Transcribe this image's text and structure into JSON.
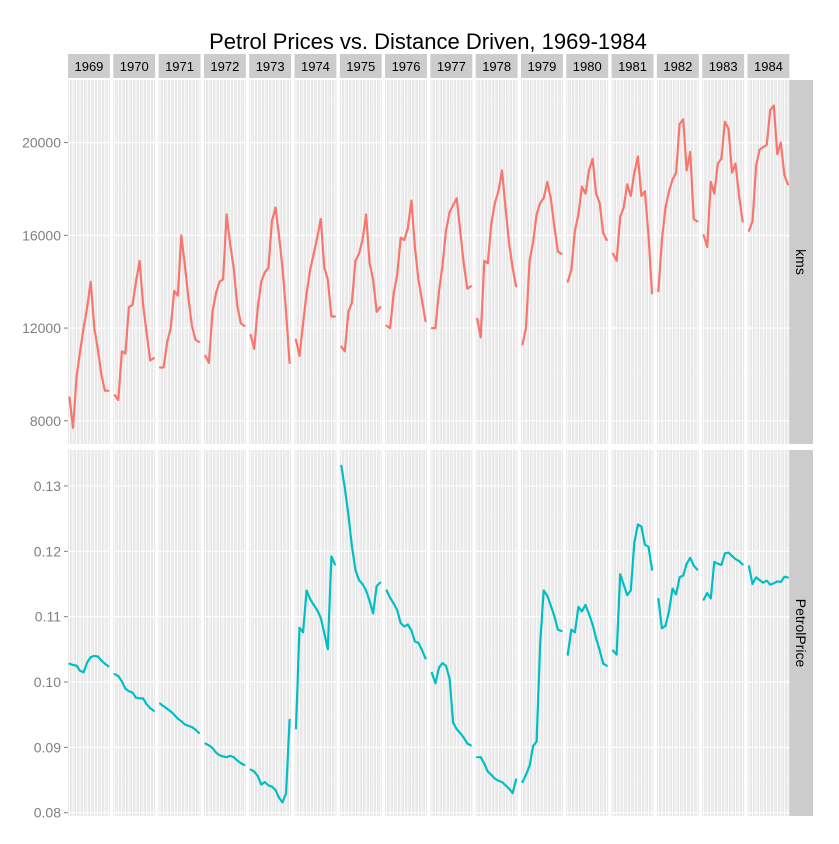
{
  "chart_data": {
    "type": "line",
    "title": "Petrol Prices vs. Distance Driven, 1969-1984",
    "xlabel": "",
    "ylabel": "",
    "grid": true,
    "legend": "none",
    "facet_columns": [
      "1969",
      "1970",
      "1971",
      "1972",
      "1973",
      "1974",
      "1975",
      "1976",
      "1977",
      "1978",
      "1979",
      "1980",
      "1981",
      "1982",
      "1983",
      "1984"
    ],
    "x_months": [
      1,
      2,
      3,
      4,
      5,
      6,
      7,
      8,
      9,
      10,
      11,
      12
    ],
    "panels": [
      {
        "label": "kms",
        "color": "#F8766D",
        "ylim": [
          7000,
          22700
        ],
        "yticks": [
          8000,
          12000,
          16000,
          20000
        ],
        "ytick_labels": [
          "8000",
          "12000",
          "16000",
          "20000"
        ],
        "series": [
          {
            "year": "1969",
            "values": [
              9000,
              7700,
              9900,
              11000,
              12000,
              12900,
              14000,
              12000,
              11100,
              10000,
              9300,
              9300
            ]
          },
          {
            "year": "1970",
            "values": [
              9100,
              8900,
              11000,
              10900,
              12900,
              13000,
              14000,
              14900,
              13000,
              11800,
              10600,
              10700
            ]
          },
          {
            "year": "1971",
            "values": [
              10300,
              10300,
              11400,
              12000,
              13600,
              13400,
              16000,
              14700,
              13300,
              12100,
              11500,
              11400
            ]
          },
          {
            "year": "1972",
            "values": [
              10800,
              10500,
              12700,
              13500,
              14000,
              14100,
              16900,
              15600,
              14600,
              13000,
              12200,
              12100
            ]
          },
          {
            "year": "1973",
            "values": [
              11700,
              11100,
              12900,
              14000,
              14400,
              14600,
              16600,
              17200,
              16000,
              14600,
              12700,
              10500
            ]
          },
          {
            "year": "1974",
            "values": [
              11500,
              10800,
              12200,
              13500,
              14500,
              15200,
              15900,
              16700,
              14600,
              14100,
              12500,
              12500
            ]
          },
          {
            "year": "1975",
            "values": [
              11200,
              11000,
              12700,
              13100,
              14900,
              15200,
              15800,
              16900,
              14800,
              14100,
              12700,
              12900
            ]
          },
          {
            "year": "1976",
            "values": [
              12100,
              12000,
              13500,
              14300,
              15900,
              15800,
              16300,
              17500,
              15500,
              14100,
              13200,
              12300
            ]
          },
          {
            "year": "1977",
            "values": [
              12000,
              12000,
              13600,
              14700,
              16200,
              17000,
              17300,
              17600,
              16200,
              14800,
              13700,
              13800
            ]
          },
          {
            "year": "1978",
            "values": [
              12400,
              11600,
              14900,
              14800,
              16500,
              17400,
              17900,
              18800,
              17200,
              15700,
              14600,
              13800
            ]
          },
          {
            "year": "1979",
            "values": [
              11300,
              12000,
              14900,
              15700,
              16900,
              17400,
              17600,
              18300,
              17600,
              16400,
              15300,
              15200
            ]
          },
          {
            "year": "1980",
            "values": [
              14000,
              14500,
              16200,
              16900,
              18100,
              17800,
              18800,
              19300,
              17800,
              17400,
              16100,
              15800
            ]
          },
          {
            "year": "1981",
            "values": [
              15200,
              14900,
              16800,
              17200,
              18200,
              17700,
              18700,
              19400,
              17700,
              17900,
              16000,
              13500
            ]
          },
          {
            "year": "1982",
            "values": [
              13600,
              15800,
              17200,
              17900,
              18400,
              18700,
              20800,
              21000,
              18800,
              19600,
              16700,
              16600
            ]
          },
          {
            "year": "1983",
            "values": [
              16000,
              15500,
              18300,
              17800,
              19100,
              19300,
              20900,
              20600,
              18700,
              19100,
              17700,
              16600
            ]
          },
          {
            "year": "1984",
            "values": [
              16200,
              16600,
              19000,
              19700,
              19800,
              19900,
              21400,
              21600,
              19500,
              20000,
              18600,
              18200
            ]
          }
        ]
      },
      {
        "label": "PetrolPrice",
        "color": "#00BFC4",
        "ylim": [
          0.0795,
          0.1355
        ],
        "yticks": [
          0.08,
          0.09,
          0.1,
          0.11,
          0.12,
          0.13
        ],
        "ytick_labels": [
          "0.08",
          "0.09",
          "0.10",
          "0.11",
          "0.12",
          "0.13"
        ],
        "series": [
          {
            "year": "1969",
            "values": [
              0.1028,
              0.1026,
              0.1025,
              0.1017,
              0.1015,
              0.103,
              0.1038,
              0.104,
              0.1039,
              0.1033,
              0.1028,
              0.1024
            ]
          },
          {
            "year": "1970",
            "values": [
              0.1012,
              0.1009,
              0.1001,
              0.099,
              0.0986,
              0.0984,
              0.0976,
              0.0975,
              0.0975,
              0.0966,
              0.096,
              0.0956
            ]
          },
          {
            "year": "1971",
            "values": [
              0.0967,
              0.0963,
              0.0959,
              0.0955,
              0.095,
              0.0944,
              0.094,
              0.0935,
              0.0933,
              0.0931,
              0.0927,
              0.0922
            ]
          },
          {
            "year": "1972",
            "values": [
              0.0906,
              0.0903,
              0.0899,
              0.0892,
              0.0888,
              0.0886,
              0.0885,
              0.0887,
              0.0885,
              0.088,
              0.0876,
              0.0873
            ]
          },
          {
            "year": "1973",
            "values": [
              0.0866,
              0.0863,
              0.0856,
              0.0843,
              0.0847,
              0.0842,
              0.084,
              0.0835,
              0.0823,
              0.0816,
              0.083,
              0.0942
            ]
          },
          {
            "year": "1974",
            "values": [
              0.0929,
              0.1083,
              0.1076,
              0.114,
              0.1127,
              0.1118,
              0.111,
              0.1098,
              0.1075,
              0.105,
              0.1192,
              0.118
            ]
          },
          {
            "year": "1975",
            "values": [
              0.1331,
              0.1297,
              0.1256,
              0.1208,
              0.1172,
              0.1156,
              0.115,
              0.114,
              0.1124,
              0.1105,
              0.1147,
              0.1152
            ]
          },
          {
            "year": "1976",
            "values": [
              0.114,
              0.1129,
              0.112,
              0.111,
              0.109,
              0.1085,
              0.1088,
              0.1079,
              0.1062,
              0.106,
              0.1049,
              0.1036
            ]
          },
          {
            "year": "1977",
            "values": [
              0.1014,
              0.0998,
              0.1022,
              0.1029,
              0.1025,
              0.1005,
              0.0938,
              0.0928,
              0.0922,
              0.0915,
              0.0906,
              0.0903
            ]
          },
          {
            "year": "1978",
            "values": [
              0.0885,
              0.0885,
              0.0875,
              0.0863,
              0.0858,
              0.0852,
              0.0849,
              0.0847,
              0.0842,
              0.0837,
              0.083,
              0.0851
            ]
          },
          {
            "year": "1979",
            "values": [
              0.0847,
              0.0858,
              0.0872,
              0.0902,
              0.0909,
              0.106,
              0.114,
              0.1132,
              0.1117,
              0.1101,
              0.108,
              0.1078
            ]
          },
          {
            "year": "1980",
            "values": [
              0.1042,
              0.108,
              0.1076,
              0.1115,
              0.1108,
              0.1118,
              0.1104,
              0.1088,
              0.1067,
              0.1049,
              0.1028,
              0.1025
            ]
          },
          {
            "year": "1981",
            "values": [
              0.1048,
              0.1042,
              0.1165,
              0.1149,
              0.1133,
              0.114,
              0.1213,
              0.1241,
              0.1238,
              0.121,
              0.1207,
              0.1172
            ]
          },
          {
            "year": "1982",
            "values": [
              0.1127,
              0.1082,
              0.1086,
              0.1108,
              0.1143,
              0.1134,
              0.116,
              0.1163,
              0.1181,
              0.119,
              0.1178,
              0.1172
            ]
          },
          {
            "year": "1983",
            "values": [
              0.1126,
              0.1136,
              0.1128,
              0.1184,
              0.1181,
              0.1179,
              0.1197,
              0.1198,
              0.1193,
              0.1188,
              0.1185,
              0.118
            ]
          },
          {
            "year": "1984",
            "values": [
              0.1177,
              0.115,
              0.116,
              0.1156,
              0.1152,
              0.1155,
              0.1149,
              0.1151,
              0.1154,
              0.1153,
              0.1161,
              0.116
            ]
          }
        ]
      }
    ]
  }
}
